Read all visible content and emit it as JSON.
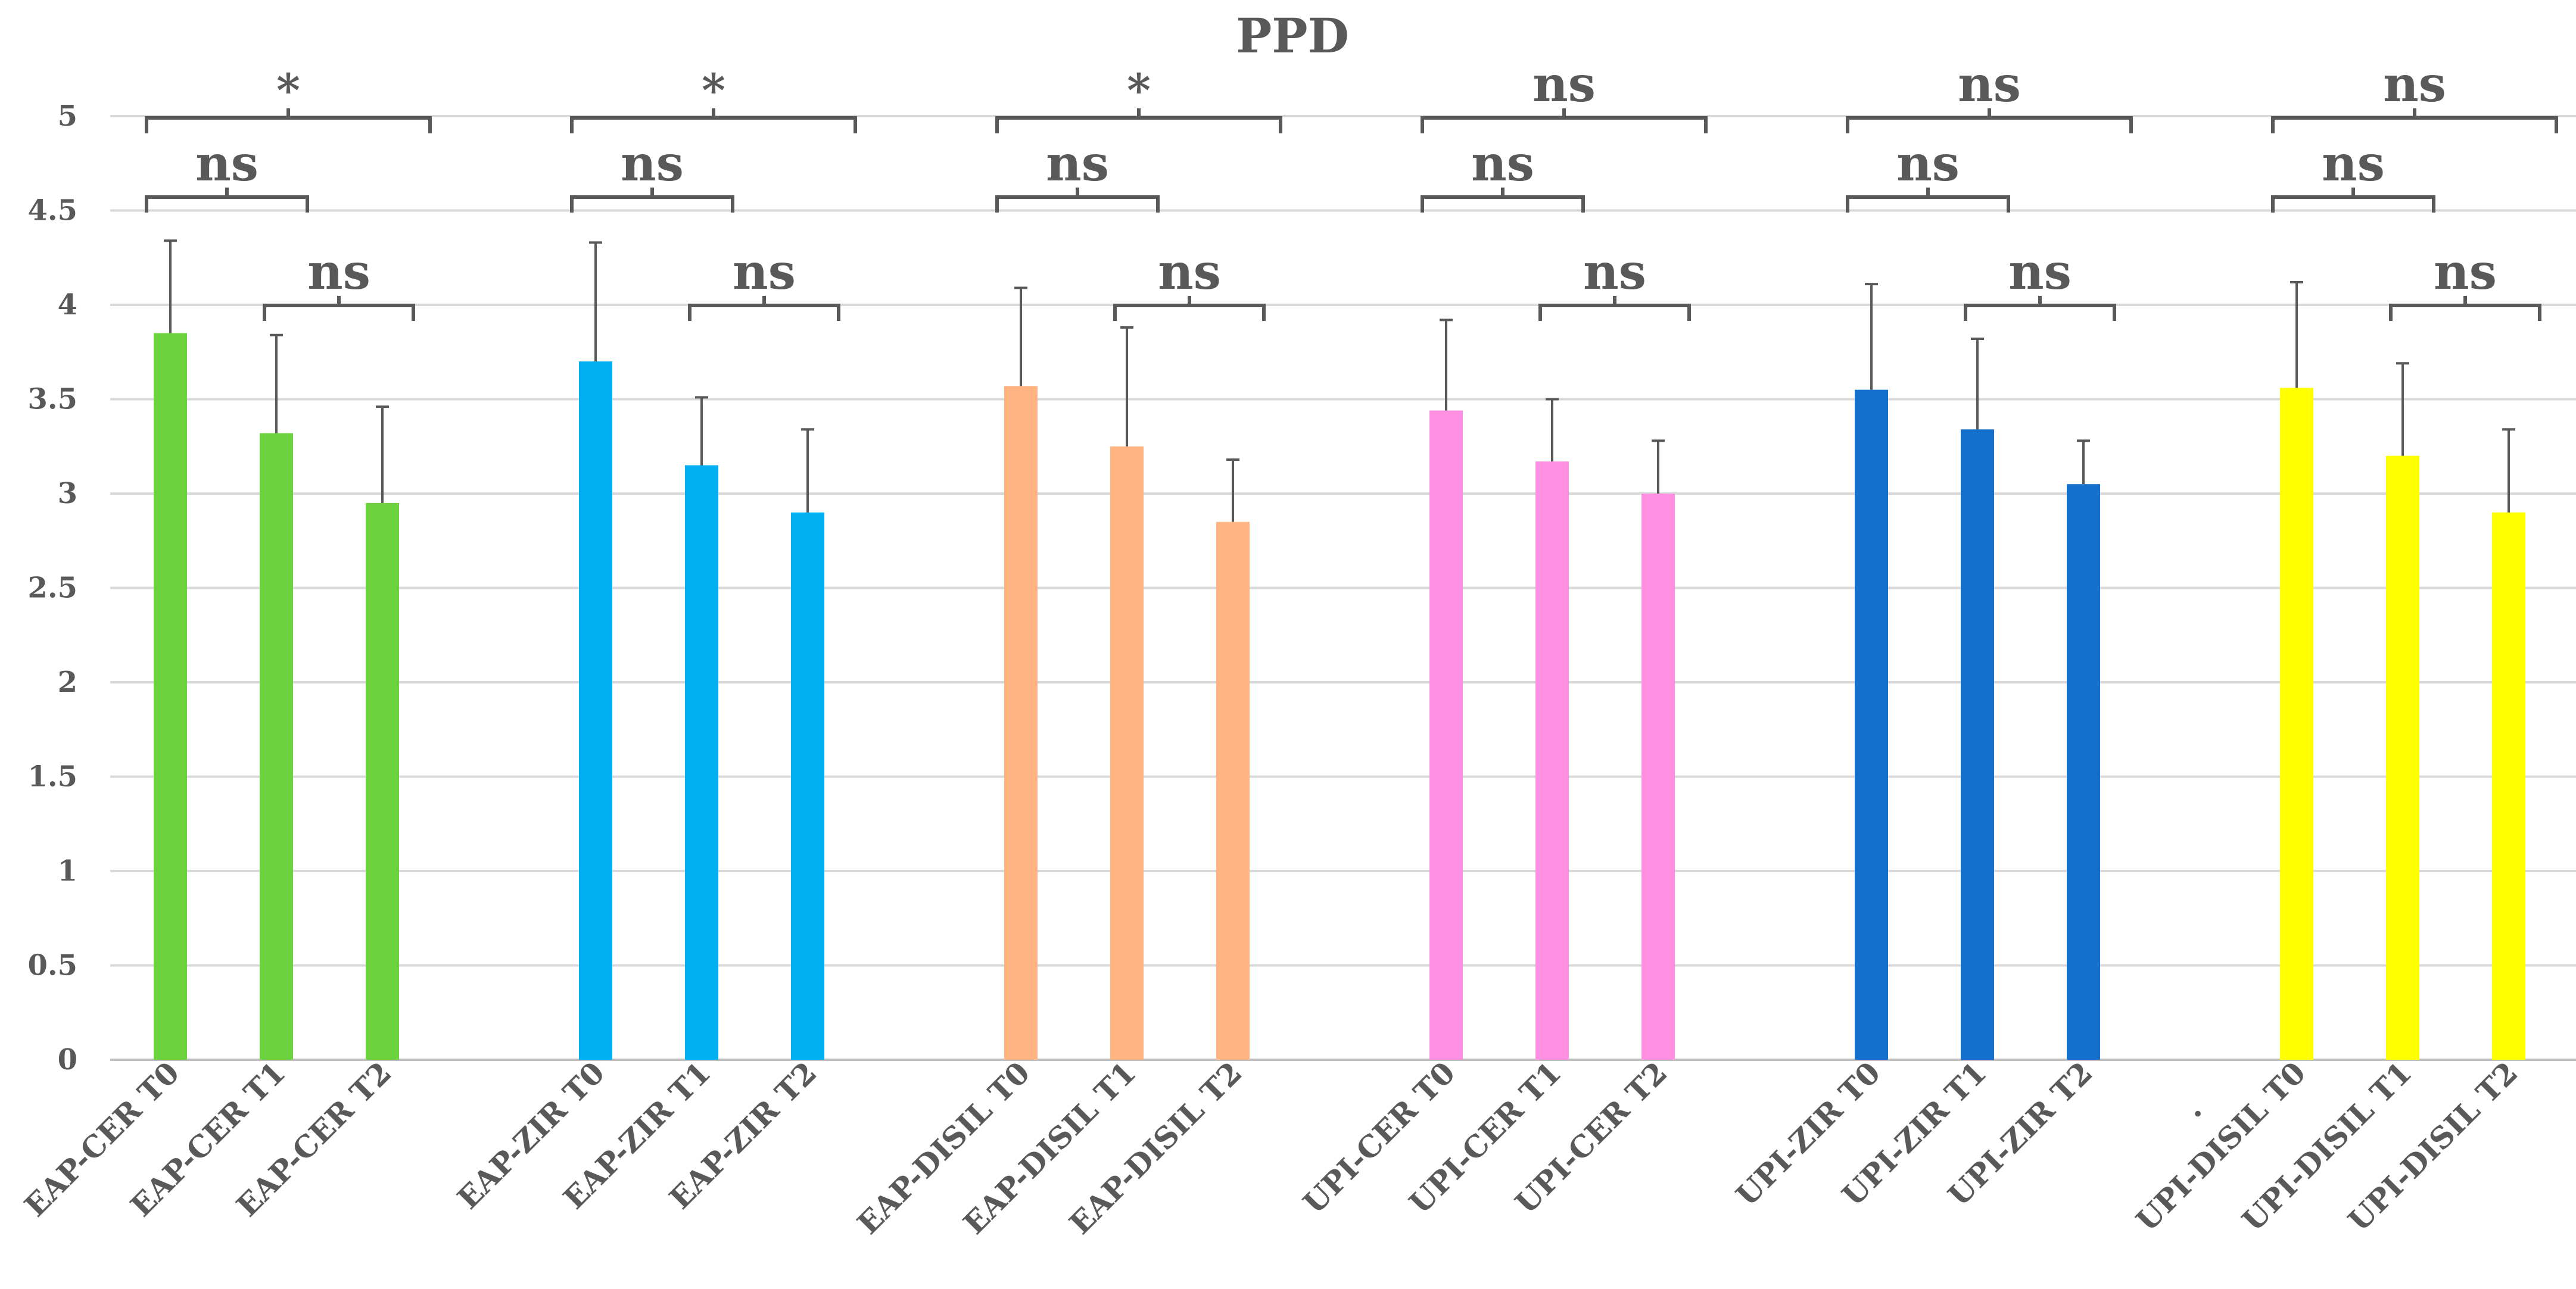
{
  "chart_data": {
    "type": "bar",
    "title": "PPD",
    "xlabel": "",
    "ylabel": "",
    "ylim": [
      0,
      5
    ],
    "y_ticks": [
      "0",
      "0.5",
      "1",
      "1.5",
      "2",
      "2.5",
      "3",
      "3.5",
      "4",
      "4.5",
      "5"
    ],
    "grid": true,
    "groups": [
      {
        "name": "EAP-CER",
        "color": "#6CD33F",
        "categories": [
          "EAP-CER T0",
          "EAP-CER T1",
          "EAP-CER T2"
        ],
        "values": [
          3.85,
          3.32,
          2.95
        ],
        "errors": [
          0.49,
          0.52,
          0.51
        ],
        "significance": {
          "t0_t2": "*",
          "t0_t1": "ns",
          "t1_t2": "ns"
        }
      },
      {
        "name": "EAP-ZIR",
        "color": "#00B0F0",
        "categories": [
          "EAP-ZIR T0",
          "EAP-ZIR T1",
          "EAP-ZIR T2"
        ],
        "values": [
          3.7,
          3.15,
          2.9
        ],
        "errors": [
          0.63,
          0.36,
          0.44
        ],
        "significance": {
          "t0_t2": "*",
          "t0_t1": "ns",
          "t1_t2": "ns"
        }
      },
      {
        "name": "EAP-DISIL",
        "color": "#FFB482",
        "categories": [
          "EAP-DISIL T0",
          "EAP-DISIL T1",
          "EAP-DISIL  T2"
        ],
        "values": [
          3.57,
          3.25,
          2.85
        ],
        "errors": [
          0.52,
          0.63,
          0.33
        ],
        "significance": {
          "t0_t2": "*",
          "t0_t1": "ns",
          "t1_t2": "ns"
        }
      },
      {
        "name": "UPI-CER",
        "color": "#FF8FE0",
        "categories": [
          "UPI-CER T0",
          "UPI-CER T1",
          "UPI-CER T2"
        ],
        "values": [
          3.44,
          3.17,
          3.0
        ],
        "errors": [
          0.48,
          0.33,
          0.28
        ],
        "significance": {
          "t0_t2": "ns",
          "t0_t1": "ns",
          "t1_t2": "ns"
        }
      },
      {
        "name": "UPI-ZIR",
        "color": "#1570CC",
        "categories": [
          "UPI-ZIR T0",
          "UPI-ZIR T1",
          "UPI-ZIR T2"
        ],
        "values": [
          3.55,
          3.34,
          3.05
        ],
        "errors": [
          0.56,
          0.48,
          0.23
        ],
        "significance": {
          "t0_t2": "ns",
          "t0_t1": "ns",
          "t1_t2": "ns"
        }
      },
      {
        "name": "UPI-DISIL",
        "color": "#FFFF00",
        "categories": [
          "UPI-DISIL T0",
          "UPI-DISIL T1",
          "UPI-DISIL T2"
        ],
        "values": [
          3.56,
          3.2,
          2.9
        ],
        "errors": [
          0.56,
          0.49,
          0.44
        ],
        "significance": {
          "t0_t2": "ns",
          "t0_t1": "ns",
          "t1_t2": "ns"
        }
      }
    ],
    "extra_label": "."
  }
}
